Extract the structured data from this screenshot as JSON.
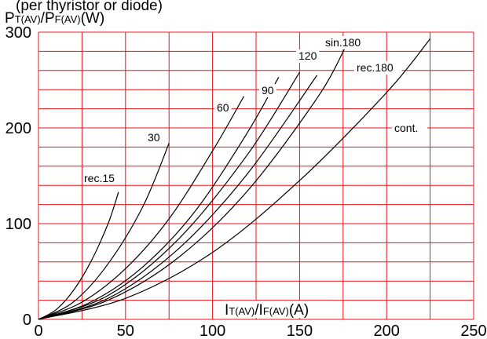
{
  "chart_data": {
    "type": "line",
    "title": "(per thyristor or diode)",
    "ylabel": {
      "p1": "P",
      "s1": "T(AV)",
      "sep": "/P",
      "s2": "F(AV)",
      "unit": "(W)"
    },
    "xlabel": {
      "p1": "I",
      "s1": "T(AV)",
      "sep": "/I",
      "s2": "F(AV)",
      "unit": "(A)"
    },
    "xlim": [
      0,
      250
    ],
    "ylim": [
      0,
      300
    ],
    "x_ticks": [
      "0",
      "50",
      "100",
      "150",
      "200",
      "250"
    ],
    "y_ticks": [
      "0",
      "100",
      "200",
      "300"
    ],
    "grid": true,
    "series": [
      {
        "name": "rec.15",
        "x": [
          0,
          10,
          20,
          30,
          40,
          46
        ],
        "y": [
          0,
          10,
          30,
          60,
          100,
          133
        ]
      },
      {
        "name": "30",
        "x": [
          0,
          20,
          40,
          60,
          75
        ],
        "y": [
          0,
          18,
          58,
          118,
          184
        ]
      },
      {
        "name": "60",
        "x": [
          0,
          25,
          50,
          75,
          100,
          118
        ],
        "y": [
          0,
          18,
          53,
          105,
          176,
          233
        ]
      },
      {
        "name": "90",
        "x": [
          0,
          30,
          60,
          90,
          120,
          138
        ],
        "y": [
          0,
          18,
          55,
          113,
          195,
          253
        ]
      },
      {
        "name": "120",
        "x": [
          0,
          40,
          80,
          120,
          150
        ],
        "y": [
          0,
          25,
          83,
          172,
          258
        ]
      },
      {
        "name": "",
        "x": [
          0,
          40,
          80,
          120,
          160
        ],
        "y": [
          0,
          22,
          73,
          152,
          255
        ]
      },
      {
        "name": "sin.180",
        "x": [
          0,
          40,
          80,
          120,
          160,
          176
        ],
        "y": [
          0,
          20,
          64,
          134,
          231,
          283
        ]
      },
      {
        "name": "cont.",
        "x": [
          0,
          50,
          100,
          150,
          200,
          225
        ],
        "y": [
          0,
          22,
          70,
          145,
          237,
          293
        ]
      }
    ],
    "annotations": [
      {
        "text": "rec.15",
        "series": "rec.15"
      },
      {
        "text": "30",
        "series": "30"
      },
      {
        "text": "60",
        "series": "60"
      },
      {
        "text": "90",
        "series": "90"
      },
      {
        "text": "120",
        "series": "120"
      },
      {
        "text": "sin.180",
        "series": "sin.180"
      },
      {
        "text": "rec.180",
        "series": ""
      },
      {
        "text": "cont.",
        "series": "cont."
      }
    ]
  }
}
